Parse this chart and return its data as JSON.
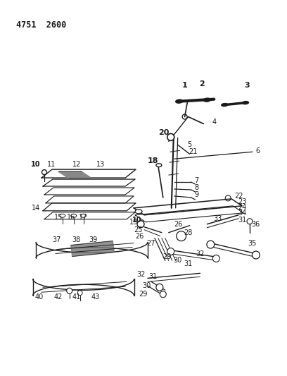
{
  "title": "4751  2600",
  "bg_color": "#ffffff",
  "line_color": "#1a1a1a",
  "figsize": [
    4.08,
    5.33
  ],
  "dpi": 100
}
